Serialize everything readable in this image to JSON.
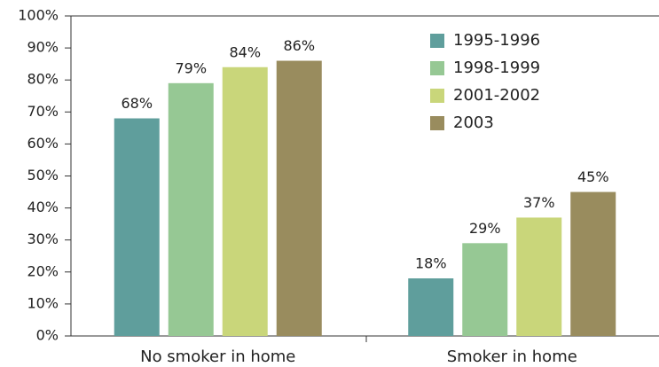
{
  "chart_data": {
    "type": "bar",
    "categories": [
      "No smoker in home",
      "Smoker in home"
    ],
    "series": [
      {
        "name": "1995-1996",
        "color": "#5f9e9c",
        "values": [
          68,
          18
        ],
        "value_labels": [
          "68%",
          "18%"
        ]
      },
      {
        "name": "1998-1999",
        "color": "#96c894",
        "values": [
          79,
          29
        ],
        "value_labels": [
          "79%",
          "29%"
        ]
      },
      {
        "name": "2001-2002",
        "color": "#c9d67a",
        "values": [
          84,
          37
        ],
        "value_labels": [
          "84%",
          "37%"
        ]
      },
      {
        "name": "2003",
        "color": "#998c5e",
        "values": [
          86,
          45
        ],
        "value_labels": [
          "86%",
          "45%"
        ]
      }
    ],
    "ylim": [
      0,
      100
    ],
    "yticks": [
      {
        "value": 0,
        "label": "0%"
      },
      {
        "value": 10,
        "label": "10%"
      },
      {
        "value": 20,
        "label": "20%"
      },
      {
        "value": 30,
        "label": "30%"
      },
      {
        "value": 40,
        "label": "40%"
      },
      {
        "value": 50,
        "label": "50%"
      },
      {
        "value": 60,
        "label": "60%"
      },
      {
        "value": 70,
        "label": "70%"
      },
      {
        "value": 80,
        "label": "80%"
      },
      {
        "value": 90,
        "label": "90%"
      },
      {
        "value": 100,
        "label": "100%"
      }
    ],
    "legend": "upper right"
  }
}
